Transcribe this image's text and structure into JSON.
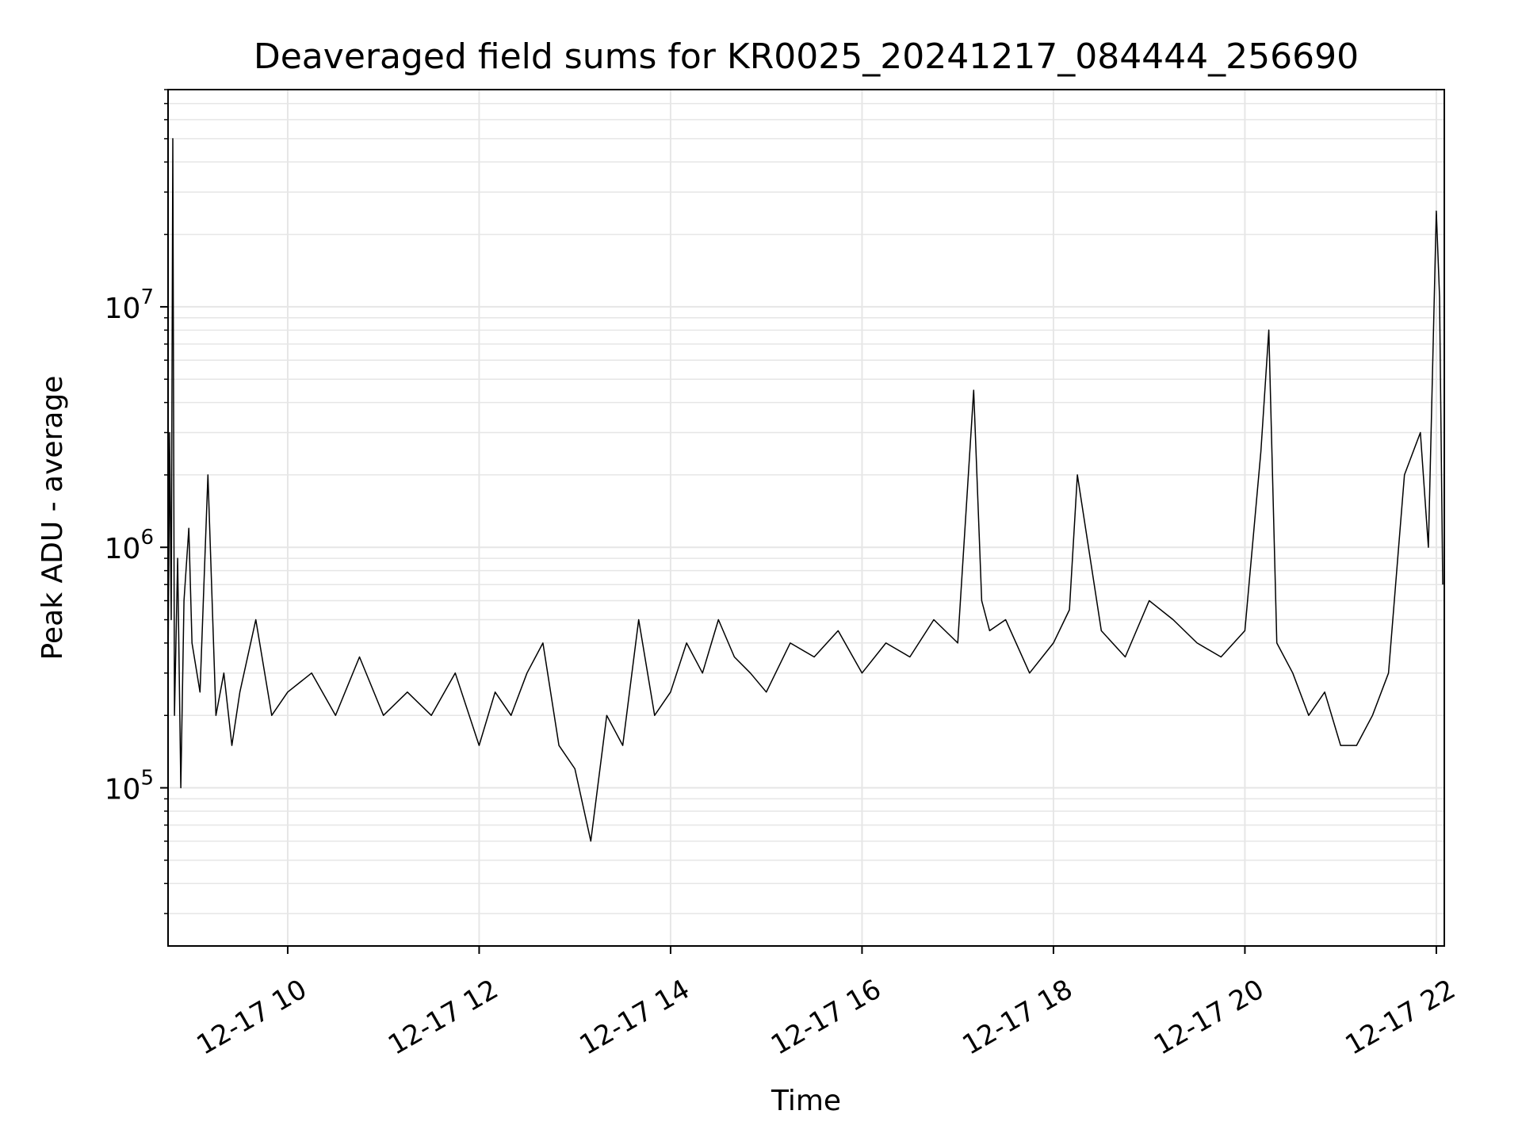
{
  "chart_data": {
    "type": "line",
    "title": "Deaveraged field sums for KR0025_20241217_084444_256690",
    "xlabel": "Time",
    "ylabel": "Peak ADU - average",
    "yscale": "log",
    "ylim": [
      22000,
      80000000
    ],
    "xlim": [
      "2024-12-17 08:45",
      "2024-12-17 22:05"
    ],
    "x_tick_labels": [
      "12-17 10",
      "12-17 12",
      "12-17 14",
      "12-17 16",
      "12-17 18",
      "12-17 20",
      "12-17 22"
    ],
    "x_tick_values": [
      "2024-12-17 10:00",
      "2024-12-17 12:00",
      "2024-12-17 14:00",
      "2024-12-17 16:00",
      "2024-12-17 18:00",
      "2024-12-17 20:00",
      "2024-12-17 22:00"
    ],
    "y_tick_labels": [
      {
        "base": "10",
        "exp": "5",
        "value": 100000
      },
      {
        "base": "10",
        "exp": "6",
        "value": 1000000
      },
      {
        "base": "10",
        "exp": "7",
        "value": 10000000
      }
    ],
    "grid": true,
    "line_color": "#000000",
    "grid_color": "#e6e6e6",
    "series": [
      {
        "x": [
          "2024-12-17 08:45",
          "2024-12-17 08:46",
          "2024-12-17 08:47",
          "2024-12-17 08:48",
          "2024-12-17 08:49",
          "2024-12-17 08:51",
          "2024-12-17 08:53",
          "2024-12-17 08:55",
          "2024-12-17 08:58",
          "2024-12-17 09:00",
          "2024-12-17 09:05",
          "2024-12-17 09:10",
          "2024-12-17 09:15",
          "2024-12-17 09:20",
          "2024-12-17 09:25",
          "2024-12-17 09:30",
          "2024-12-17 09:40",
          "2024-12-17 09:50",
          "2024-12-17 10:00",
          "2024-12-17 10:15",
          "2024-12-17 10:30",
          "2024-12-17 10:45",
          "2024-12-17 11:00",
          "2024-12-17 11:15",
          "2024-12-17 11:30",
          "2024-12-17 11:45",
          "2024-12-17 12:00",
          "2024-12-17 12:10",
          "2024-12-17 12:20",
          "2024-12-17 12:30",
          "2024-12-17 12:40",
          "2024-12-17 12:50",
          "2024-12-17 13:00",
          "2024-12-17 13:10",
          "2024-12-17 13:20",
          "2024-12-17 13:30",
          "2024-12-17 13:40",
          "2024-12-17 13:50",
          "2024-12-17 14:00",
          "2024-12-17 14:10",
          "2024-12-17 14:20",
          "2024-12-17 14:30",
          "2024-12-17 14:40",
          "2024-12-17 14:50",
          "2024-12-17 15:00",
          "2024-12-17 15:15",
          "2024-12-17 15:30",
          "2024-12-17 15:45",
          "2024-12-17 16:00",
          "2024-12-17 16:15",
          "2024-12-17 16:30",
          "2024-12-17 16:45",
          "2024-12-17 17:00",
          "2024-12-17 17:10",
          "2024-12-17 17:15",
          "2024-12-17 17:20",
          "2024-12-17 17:30",
          "2024-12-17 17:45",
          "2024-12-17 18:00",
          "2024-12-17 18:10",
          "2024-12-17 18:15",
          "2024-12-17 18:30",
          "2024-12-17 18:45",
          "2024-12-17 19:00",
          "2024-12-17 19:15",
          "2024-12-17 19:30",
          "2024-12-17 19:45",
          "2024-12-17 20:00",
          "2024-12-17 20:10",
          "2024-12-17 20:15",
          "2024-12-17 20:20",
          "2024-12-17 20:30",
          "2024-12-17 20:40",
          "2024-12-17 20:50",
          "2024-12-17 21:00",
          "2024-12-17 21:10",
          "2024-12-17 21:20",
          "2024-12-17 21:30",
          "2024-12-17 21:40",
          "2024-12-17 21:50",
          "2024-12-17 21:55",
          "2024-12-17 22:00",
          "2024-12-17 22:02",
          "2024-12-17 22:04"
        ],
        "values": [
          300000,
          3000000,
          500000,
          50000000,
          200000,
          900000,
          100000,
          600000,
          1200000,
          400000,
          250000,
          2000000,
          200000,
          300000,
          150000,
          250000,
          500000,
          200000,
          250000,
          300000,
          200000,
          350000,
          200000,
          250000,
          200000,
          300000,
          150000,
          250000,
          200000,
          300000,
          400000,
          150000,
          120000,
          60000,
          200000,
          150000,
          500000,
          200000,
          250000,
          400000,
          300000,
          500000,
          350000,
          300000,
          250000,
          400000,
          350000,
          450000,
          300000,
          400000,
          350000,
          500000,
          400000,
          4500000,
          600000,
          450000,
          500000,
          300000,
          400000,
          550000,
          2000000,
          450000,
          350000,
          600000,
          500000,
          400000,
          350000,
          450000,
          2500000,
          8000000,
          400000,
          300000,
          200000,
          250000,
          150000,
          150000,
          200000,
          300000,
          2000000,
          3000000,
          1000000,
          25000000,
          11000000,
          700000
        ]
      }
    ]
  }
}
